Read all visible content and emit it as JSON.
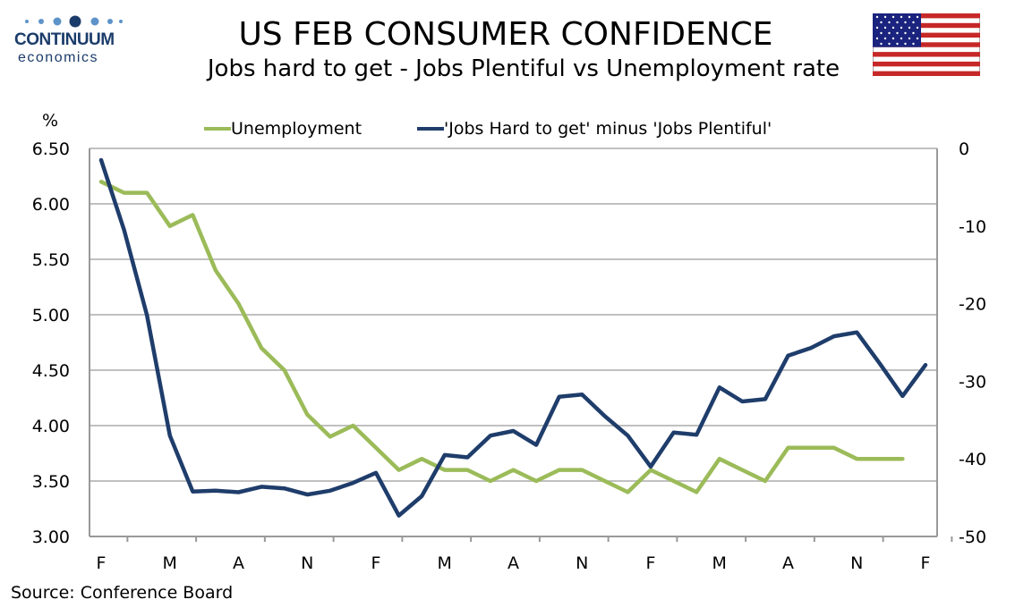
{
  "brand": {
    "name": "CONTINUUM",
    "tagline": "economics"
  },
  "header": {
    "title": "US FEB CONSUMER CONFIDENCE",
    "subtitle": "Jobs hard to get - Jobs Plentiful vs Unemployment rate"
  },
  "footer": {
    "source": "Source: Conference Board"
  },
  "colors": {
    "unemployment": "#9bbb59",
    "jobs_diff": "#1f3d6b",
    "grid": "#c0c0c0",
    "brand": "#1b3c6a"
  },
  "chart_data": {
    "type": "line",
    "x_tick_labels": [
      "F",
      "M",
      "A",
      "N",
      "F",
      "M",
      "A",
      "N",
      "F",
      "M",
      "A",
      "N",
      "F"
    ],
    "left_axis": {
      "label": "%",
      "ticks": [
        "6.50",
        "6.00",
        "5.50",
        "5.00",
        "4.50",
        "4.00",
        "3.50",
        "3.00"
      ],
      "ylim": [
        3.0,
        6.5
      ]
    },
    "right_axis": {
      "ticks": [
        "0",
        "-10",
        "-20",
        "-30",
        "-40",
        "-50"
      ],
      "ylim": [
        -50,
        0
      ]
    },
    "grid": true,
    "legend": "top",
    "series": [
      {
        "name": "Unemployment",
        "axis": "left",
        "values": [
          6.2,
          6.1,
          6.1,
          5.8,
          5.9,
          5.4,
          5.1,
          4.7,
          4.5,
          4.1,
          3.9,
          4.0,
          3.8,
          3.6,
          3.7,
          3.6,
          3.6,
          3.5,
          3.6,
          3.5,
          3.6,
          3.6,
          3.5,
          3.4,
          3.6,
          3.5,
          3.4,
          3.7,
          3.6,
          3.5,
          3.8,
          3.8,
          3.8,
          3.7,
          3.7,
          3.7
        ]
      },
      {
        "name": "'Jobs Hard to get' minus 'Jobs Plentiful'",
        "axis": "right",
        "values": [
          -1.5,
          -10.5,
          -21.5,
          -37.0,
          -44.2,
          -44.1,
          -44.3,
          -43.6,
          -43.8,
          -44.6,
          -44.1,
          -43.1,
          -41.8,
          -47.3,
          -44.8,
          -39.5,
          -39.8,
          -37.0,
          -36.4,
          -38.2,
          -32.0,
          -31.7,
          -34.5,
          -37.0,
          -41.0,
          -36.6,
          -36.9,
          -30.8,
          -32.6,
          -32.3,
          -26.7,
          -25.7,
          -24.2,
          -23.7,
          -27.7,
          -31.9,
          -27.9
        ]
      }
    ]
  }
}
